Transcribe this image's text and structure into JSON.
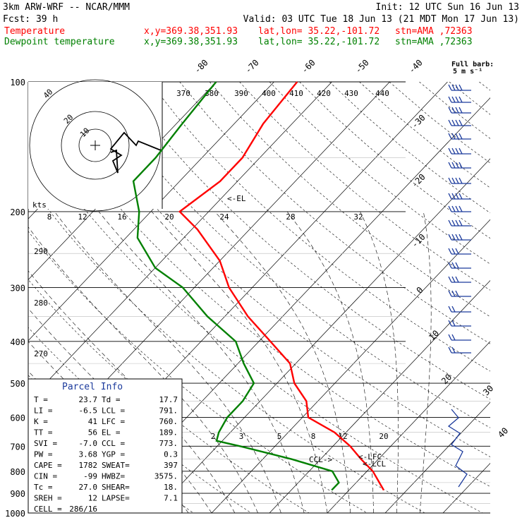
{
  "header": {
    "model": "3km ARW-WRF -- NCAR/MMM",
    "init": "Init: 12 UTC Sun 16 Jun 13",
    "fcst": "Fcst:    39 h",
    "valid": "Valid: 03 UTC Tue 18 Jun 13 (21 MDT Mon 17 Jun 13)",
    "temp_label": "Temperature",
    "dew_label": "Dewpoint temperature",
    "xy": "x,y=369.38,351.93",
    "latlon": "lat,lon= 35.22,-101.72",
    "stn": "stn=AMA ,72363",
    "temp_color": "#ff0000",
    "dew_color": "#008000"
  },
  "barb_key": {
    "line1": "Full barb:",
    "line2": "5 m s⁻¹"
  },
  "hodograph": {
    "kts_label": "kts",
    "ring_labels": [
      "40",
      "20",
      "10"
    ]
  },
  "chart_data": {
    "type": "skew-t",
    "title": "",
    "xlabel": "",
    "ylabel": "",
    "pressure_levels": [
      "100",
      "200",
      "300",
      "400",
      "500",
      "600",
      "700",
      "800",
      "900",
      "1000"
    ],
    "temperature_ticks": [
      "-80",
      "-70",
      "-60",
      "-50",
      "-40",
      "-30",
      "-20",
      "-10",
      "0",
      "10",
      "20",
      "30",
      "40"
    ],
    "theta_labels": [
      "370",
      "380",
      "390",
      "400",
      "410",
      "420",
      "430",
      "440"
    ],
    "theta_low_labels": [
      "290",
      "280",
      "270"
    ],
    "mixing_ratio_labels": [
      "8",
      "12",
      "16",
      "20",
      "24",
      "28",
      "32"
    ],
    "mixing_ratio_low_labels": [
      "2",
      "3",
      "5",
      "8",
      "12",
      "20"
    ],
    "markers": {
      "el": "<-EL",
      "lfc": "<-LFC",
      "lcl": "<-LCL",
      "ccl": "CCL->"
    },
    "series": [
      {
        "name": "Temperature",
        "color": "#ff0000",
        "points": [
          [
            100,
            -56
          ],
          [
            125,
            -55
          ],
          [
            150,
            -53
          ],
          [
            170,
            -53
          ],
          [
            200,
            -55
          ],
          [
            220,
            -49
          ],
          [
            260,
            -40
          ],
          [
            300,
            -34
          ],
          [
            350,
            -26
          ],
          [
            400,
            -18
          ],
          [
            450,
            -11
          ],
          [
            500,
            -7
          ],
          [
            550,
            -2
          ],
          [
            600,
            1
          ],
          [
            650,
            8
          ],
          [
            700,
            13
          ],
          [
            750,
            17
          ],
          [
            800,
            21
          ],
          [
            850,
            24
          ],
          [
            885,
            26
          ]
        ]
      },
      {
        "name": "Dewpoint temperature",
        "color": "#008000",
        "points": [
          [
            100,
            -70
          ],
          [
            125,
            -69
          ],
          [
            150,
            -68
          ],
          [
            170,
            -68
          ],
          [
            200,
            -62
          ],
          [
            230,
            -58
          ],
          [
            270,
            -50
          ],
          [
            300,
            -42
          ],
          [
            350,
            -33
          ],
          [
            400,
            -24
          ],
          [
            450,
            -19
          ],
          [
            500,
            -14
          ],
          [
            550,
            -13
          ],
          [
            600,
            -13
          ],
          [
            650,
            -12
          ],
          [
            680,
            -11
          ],
          [
            700,
            -6
          ],
          [
            750,
            5
          ],
          [
            800,
            14
          ],
          [
            850,
            17
          ],
          [
            885,
            17
          ]
        ]
      }
    ]
  },
  "parcel_info": {
    "title": "Parcel Info",
    "rows": [
      [
        "T  =",
        "23.7",
        "Td =",
        "17.7"
      ],
      [
        "LI =",
        "-6.5",
        "LCL =",
        "791."
      ],
      [
        "K  =",
        "41",
        "LFC =",
        "760."
      ],
      [
        "TT =",
        "56",
        "EL  =",
        "189."
      ],
      [
        "SVI =",
        "-7.0",
        "CCL =",
        "773."
      ],
      [
        "PW =",
        "3.68",
        "YGP =",
        "0.3"
      ],
      [
        "CAPE =",
        "1782",
        "SWEAT=",
        "397"
      ],
      [
        "CIN =",
        "-99",
        "HWBZ=",
        "3575."
      ],
      [
        "Tc =",
        "27.0",
        "SHEAR=",
        "18."
      ],
      [
        "SREH =",
        "12",
        "LAPSE=",
        "7.1"
      ],
      [
        "CELL =",
        "286/16",
        "",
        ""
      ]
    ]
  }
}
